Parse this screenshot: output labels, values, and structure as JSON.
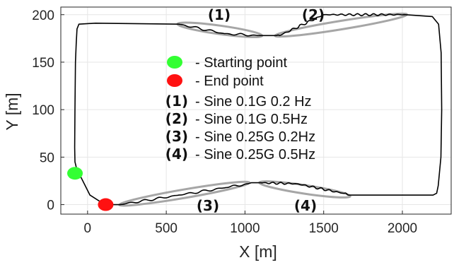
{
  "chart_data": {
    "type": "line",
    "xlabel": "X [m]",
    "ylabel": "Y [m]",
    "xlim": [
      -170,
      2310
    ],
    "ylim": [
      -10,
      208
    ],
    "x_ticks": [
      0,
      500,
      1000,
      1500,
      2000
    ],
    "y_ticks": [
      0,
      50,
      100,
      150,
      200
    ],
    "grid": true,
    "series": [
      {
        "x": [
          110,
          205,
          580,
          880,
          1020,
          1040,
          1100,
          1330,
          1620,
          1660,
          2195,
          2218,
          2228,
          2245,
          2250,
          2246,
          2230,
          2190,
          2020,
          1500,
          1220,
          1200,
          1080,
          870,
          580,
          50,
          -55,
          -67,
          -72,
          -77,
          -80,
          -82,
          -80,
          -70,
          15,
          110
        ],
        "y": [
          0,
          0,
          10,
          18,
          22,
          23,
          23,
          22,
          12,
          10,
          10,
          12,
          20,
          50,
          100,
          160,
          190,
          198,
          200,
          200,
          178,
          178,
          178,
          180,
          190,
          191,
          190,
          185,
          170,
          150,
          100,
          60,
          45,
          38,
          10,
          0
        ]
      }
    ],
    "start_point": {
      "x": -80,
      "y": 33
    },
    "end_point": {
      "x": 115,
      "y": 0
    },
    "segments": [
      {
        "label": "(1)",
        "x1": 580,
        "y1": 190,
        "x2": 1100,
        "y2": 178
      },
      {
        "label": "(2)",
        "x1": 1200,
        "y1": 178,
        "x2": 2020,
        "y2": 200
      },
      {
        "label": "(3)",
        "x1": 210,
        "y1": 0,
        "x2": 1020,
        "y2": 23
      },
      {
        "label": "(4)",
        "x1": 1100,
        "y1": 23,
        "x2": 1660,
        "y2": 9
      }
    ],
    "legend": {
      "placement": "center",
      "starting_label": "Starting point",
      "end_label": "End point",
      "entries": [
        {
          "num": "(1)",
          "text": "Sine 0.1G 0.2 Hz"
        },
        {
          "num": "(2)",
          "text": "Sine 0.1G 0.5Hz"
        },
        {
          "num": "(3)",
          "text": "Sine 0.25G 0.2Hz"
        },
        {
          "num": "(4)",
          "text": "Sine 0.25G 0.5Hz"
        }
      ]
    },
    "colors": {
      "path": "#000000",
      "start": "#33ff33",
      "end": "#ff1111",
      "ellipse": "#a6a6a6",
      "grid": "#e6e6e6",
      "axis": "#262626"
    }
  }
}
